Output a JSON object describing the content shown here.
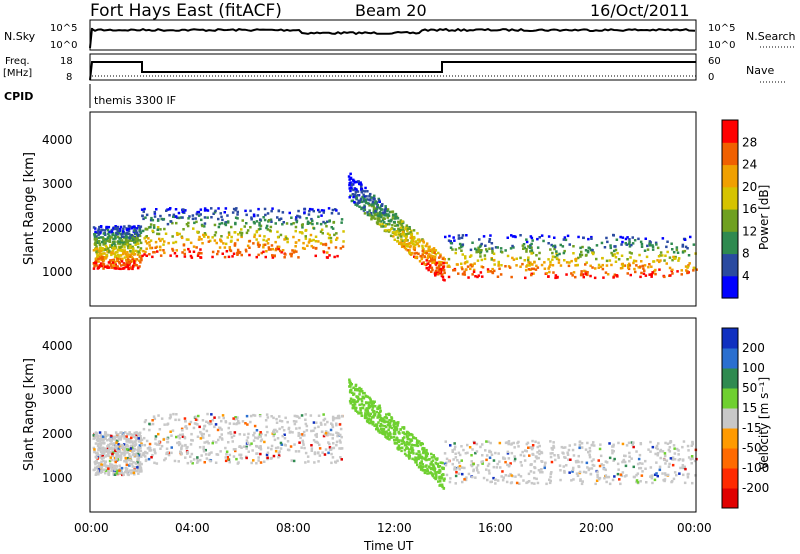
{
  "header": {
    "station": "Fort Hays East (fitACF)",
    "beam": "Beam 20",
    "date": "16/Oct/2011"
  },
  "strip_panels": {
    "noise": {
      "left_label": "N.Sky",
      "left_ticks": [
        "10^5",
        "10^0"
      ],
      "right_label": "N.Search",
      "right_ticks": [
        "10^5",
        "10^0"
      ]
    },
    "freq": {
      "left_label_1": "Freq.",
      "left_label_2": "[MHz]",
      "left_ticks": [
        "18",
        "8"
      ],
      "right_label": "Nave",
      "right_ticks": [
        "60",
        "0"
      ]
    },
    "cpid": {
      "label": "CPID",
      "text": "themis 3300 IF"
    }
  },
  "colorbars": {
    "power": {
      "label": "Power [dB]",
      "tick_labels": [
        "4",
        "8",
        "12",
        "16",
        "20",
        "24",
        "28"
      ],
      "colors": [
        "#0000ff",
        "#2a4aa0",
        "#2f8a50",
        "#6fa020",
        "#d6c300",
        "#f0a000",
        "#f06000",
        "#ff0000"
      ]
    },
    "velocity": {
      "label": "Velocity [m s⁻¹]",
      "tick_labels": [
        "200",
        "100",
        "50",
        "15",
        "-15",
        "-50",
        "-100",
        "-200"
      ],
      "colors": [
        "#1030c0",
        "#2a6fd0",
        "#2f8a50",
        "#6fd030",
        "#c8c8c8",
        "#ff9a00",
        "#ff6a00",
        "#ff2a00",
        "#e00000"
      ]
    }
  },
  "chart_data": [
    {
      "type": "heatmap",
      "name": "power",
      "ylabel": "Slant Range [km]",
      "yticks": [
        1000,
        2000,
        3000,
        4000
      ],
      "ylim": [
        200,
        4500
      ],
      "xlim": [
        0,
        24
      ],
      "colorbar": "Power [dB]",
      "scatter_bands": [
        {
          "x_range": [
            0,
            2
          ],
          "y_range": [
            1000,
            2200
          ],
          "level": "high"
        },
        {
          "x_range": [
            2,
            10
          ],
          "y_range": [
            1300,
            2500
          ],
          "level": "high"
        },
        {
          "x_range": [
            10,
            14
          ],
          "y_range": [
            900,
            3000
          ],
          "level": "medium"
        },
        {
          "x_range": [
            14,
            24
          ],
          "y_range": [
            800,
            1800
          ],
          "level": "high"
        }
      ]
    },
    {
      "type": "heatmap",
      "name": "velocity",
      "ylabel": "Slant Range [km]",
      "yticks": [
        1000,
        2000,
        3000,
        4000
      ],
      "ylim": [
        200,
        4500
      ],
      "xlim": [
        0,
        24
      ],
      "xticks": [
        "00:00",
        "04:00",
        "08:00",
        "12:00",
        "16:00",
        "20:00",
        "00:00"
      ],
      "xlabel": "Time UT",
      "colorbar": "Velocity [m s⁻¹]"
    }
  ]
}
